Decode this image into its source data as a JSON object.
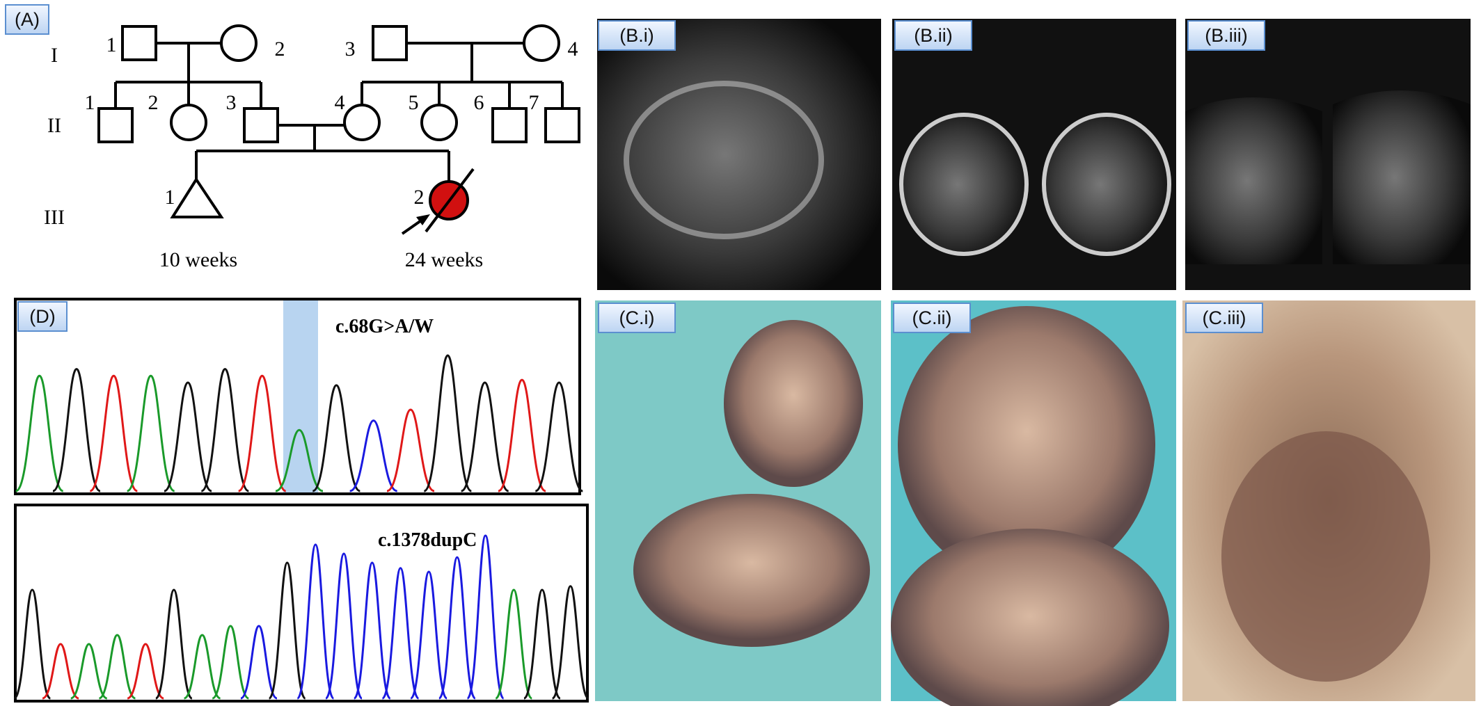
{
  "panel_a": {
    "label": "(A)",
    "generations": [
      "I",
      "II",
      "III"
    ],
    "numbers": [
      "1",
      "2",
      "3",
      "4",
      "1",
      "2",
      "3",
      "4",
      "5",
      "6",
      "7",
      "1",
      "2"
    ],
    "ages": [
      "10 weeks",
      "24 weeks"
    ]
  },
  "panel_b": {
    "labels": [
      "(B.i)",
      "(B.ii)",
      "(B.iii)"
    ]
  },
  "panel_c": {
    "labels": [
      "(C.i)",
      "(C.ii)",
      "(C.iii)"
    ]
  },
  "panel_d": {
    "label": "(D)",
    "variants": [
      "c.68G>A/W",
      "c.1378dupC"
    ]
  }
}
